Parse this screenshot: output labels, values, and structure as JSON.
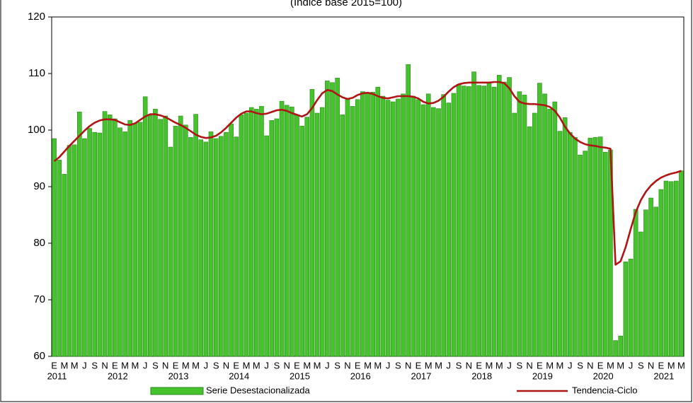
{
  "chart_data": {
    "type": "bar",
    "subtitle": "(Índice base 2015=100)",
    "categories": [
      "E",
      null,
      "M",
      null,
      "M",
      null,
      "J",
      null,
      "S",
      null,
      "N",
      null,
      "E",
      null,
      "M",
      null,
      "M",
      null,
      "J",
      null,
      "S",
      null,
      "N",
      null,
      "E",
      null,
      "M",
      null,
      "M",
      null,
      "J",
      null,
      "S",
      null,
      "N",
      null,
      "E",
      null,
      "M",
      null,
      "M",
      null,
      "J",
      null,
      "S",
      null,
      "N",
      null,
      "E",
      null,
      "M",
      null,
      "M",
      null,
      "J",
      null,
      "S",
      null,
      "N",
      null,
      "E",
      null,
      "M",
      null,
      "M",
      null,
      "J",
      null,
      "S",
      null,
      "N",
      null,
      "E",
      null,
      "M",
      null,
      "M",
      null,
      "J",
      null,
      "S",
      null,
      "N",
      null,
      "E",
      null,
      "M",
      null,
      "M",
      null,
      "J",
      null,
      "S",
      null,
      "N",
      null,
      "E",
      null,
      "M",
      null,
      "M",
      null,
      "J",
      null,
      "S",
      null,
      "N",
      null,
      "E",
      null,
      "M",
      null,
      "M",
      null,
      "J",
      null,
      "S",
      null,
      "N",
      null,
      "E",
      null,
      "M",
      null,
      "M"
    ],
    "years": [
      "2011",
      "2012",
      "2013",
      "2014",
      "2015",
      "2016",
      "2017",
      "2018",
      "2019",
      "2020",
      "2021"
    ],
    "series": [
      {
        "name": "Serie Desestacionalizada",
        "color": "#45c22c",
        "edge": "#2b8a1c",
        "values": [
          98.5,
          94.7,
          92.2,
          97.3,
          97.4,
          103.2,
          98.5,
          100.3,
          99.6,
          99.5,
          103.3,
          102.7,
          102.0,
          100.4,
          99.7,
          101.7,
          101.2,
          101.4,
          105.9,
          102.6,
          103.7,
          101.9,
          102.5,
          97.0,
          100.7,
          102.5,
          100.9,
          98.7,
          102.8,
          98.3,
          97.9,
          99.7,
          98.5,
          98.9,
          99.6,
          101.1,
          98.8,
          102.7,
          103.0,
          104.0,
          103.7,
          104.2,
          99.0,
          101.7,
          102.0,
          105.1,
          104.4,
          104.1,
          102.7,
          100.7,
          102.3,
          107.2,
          103.0,
          104.0,
          108.7,
          108.4,
          109.2,
          102.7,
          105.4,
          104.2,
          105.4,
          106.8,
          106.5,
          106.7,
          107.6,
          106.0,
          105.3,
          105.0,
          105.5,
          106.4,
          111.6,
          106.0,
          105.4,
          104.5,
          106.4,
          104.0,
          103.8,
          106.3,
          104.8,
          106.5,
          108.1,
          107.8,
          107.7,
          110.3,
          107.9,
          107.8,
          108.5,
          107.6,
          109.7,
          108.5,
          109.3,
          103.0,
          106.8,
          106.2,
          100.6,
          103.0,
          108.3,
          106.4,
          103.7,
          105.0,
          99.8,
          102.2,
          99.6,
          98.7,
          95.6,
          96.3,
          98.6,
          98.7,
          98.8,
          96.1,
          96.5,
          62.8,
          63.6,
          76.7,
          77.2,
          86.0,
          82.0,
          85.9,
          88.0,
          86.4,
          89.5,
          91.0,
          90.9,
          91.0,
          92.8
        ]
      },
      {
        "name": "Tendencia-Ciclo",
        "type": "line",
        "color": "#b01515",
        "values": [
          94.5,
          95.2,
          96.2,
          97.2,
          98.1,
          99.0,
          99.9,
          100.7,
          101.3,
          101.7,
          101.9,
          101.9,
          101.8,
          101.4,
          101.0,
          100.9,
          101.2,
          101.8,
          102.4,
          102.8,
          102.8,
          102.6,
          102.3,
          101.8,
          101.3,
          100.9,
          100.4,
          99.8,
          99.2,
          98.8,
          98.6,
          98.7,
          99.0,
          99.6,
          100.4,
          101.3,
          102.2,
          102.9,
          103.3,
          103.3,
          103.0,
          102.8,
          102.9,
          103.2,
          103.5,
          103.6,
          103.4,
          103.0,
          102.7,
          102.4,
          102.8,
          103.9,
          105.3,
          106.5,
          107.1,
          106.9,
          106.3,
          105.8,
          105.5,
          105.7,
          106.2,
          106.5,
          106.6,
          106.4,
          106.0,
          105.7,
          105.6,
          105.8,
          106.0,
          106.0,
          106.0,
          105.9,
          105.6,
          105.0,
          104.7,
          104.8,
          105.2,
          105.9,
          106.8,
          107.6,
          108.1,
          108.3,
          108.4,
          108.4,
          108.4,
          108.4,
          108.4,
          108.5,
          108.5,
          108.3,
          107.4,
          106.0,
          105.0,
          104.7,
          104.6,
          104.6,
          104.5,
          104.4,
          104.1,
          103.4,
          102.2,
          100.6,
          99.4,
          98.5,
          97.9,
          97.5,
          97.3,
          97.2,
          97.0,
          96.9,
          96.7,
          76.2,
          76.8,
          79.3,
          82.5,
          85.5,
          87.6,
          89.1,
          90.2,
          91.0,
          91.6,
          92.0,
          92.3,
          92.5,
          92.8
        ]
      }
    ],
    "ylim": [
      60,
      120
    ],
    "yticks": [
      60,
      70,
      80,
      90,
      100,
      110,
      120
    ]
  }
}
